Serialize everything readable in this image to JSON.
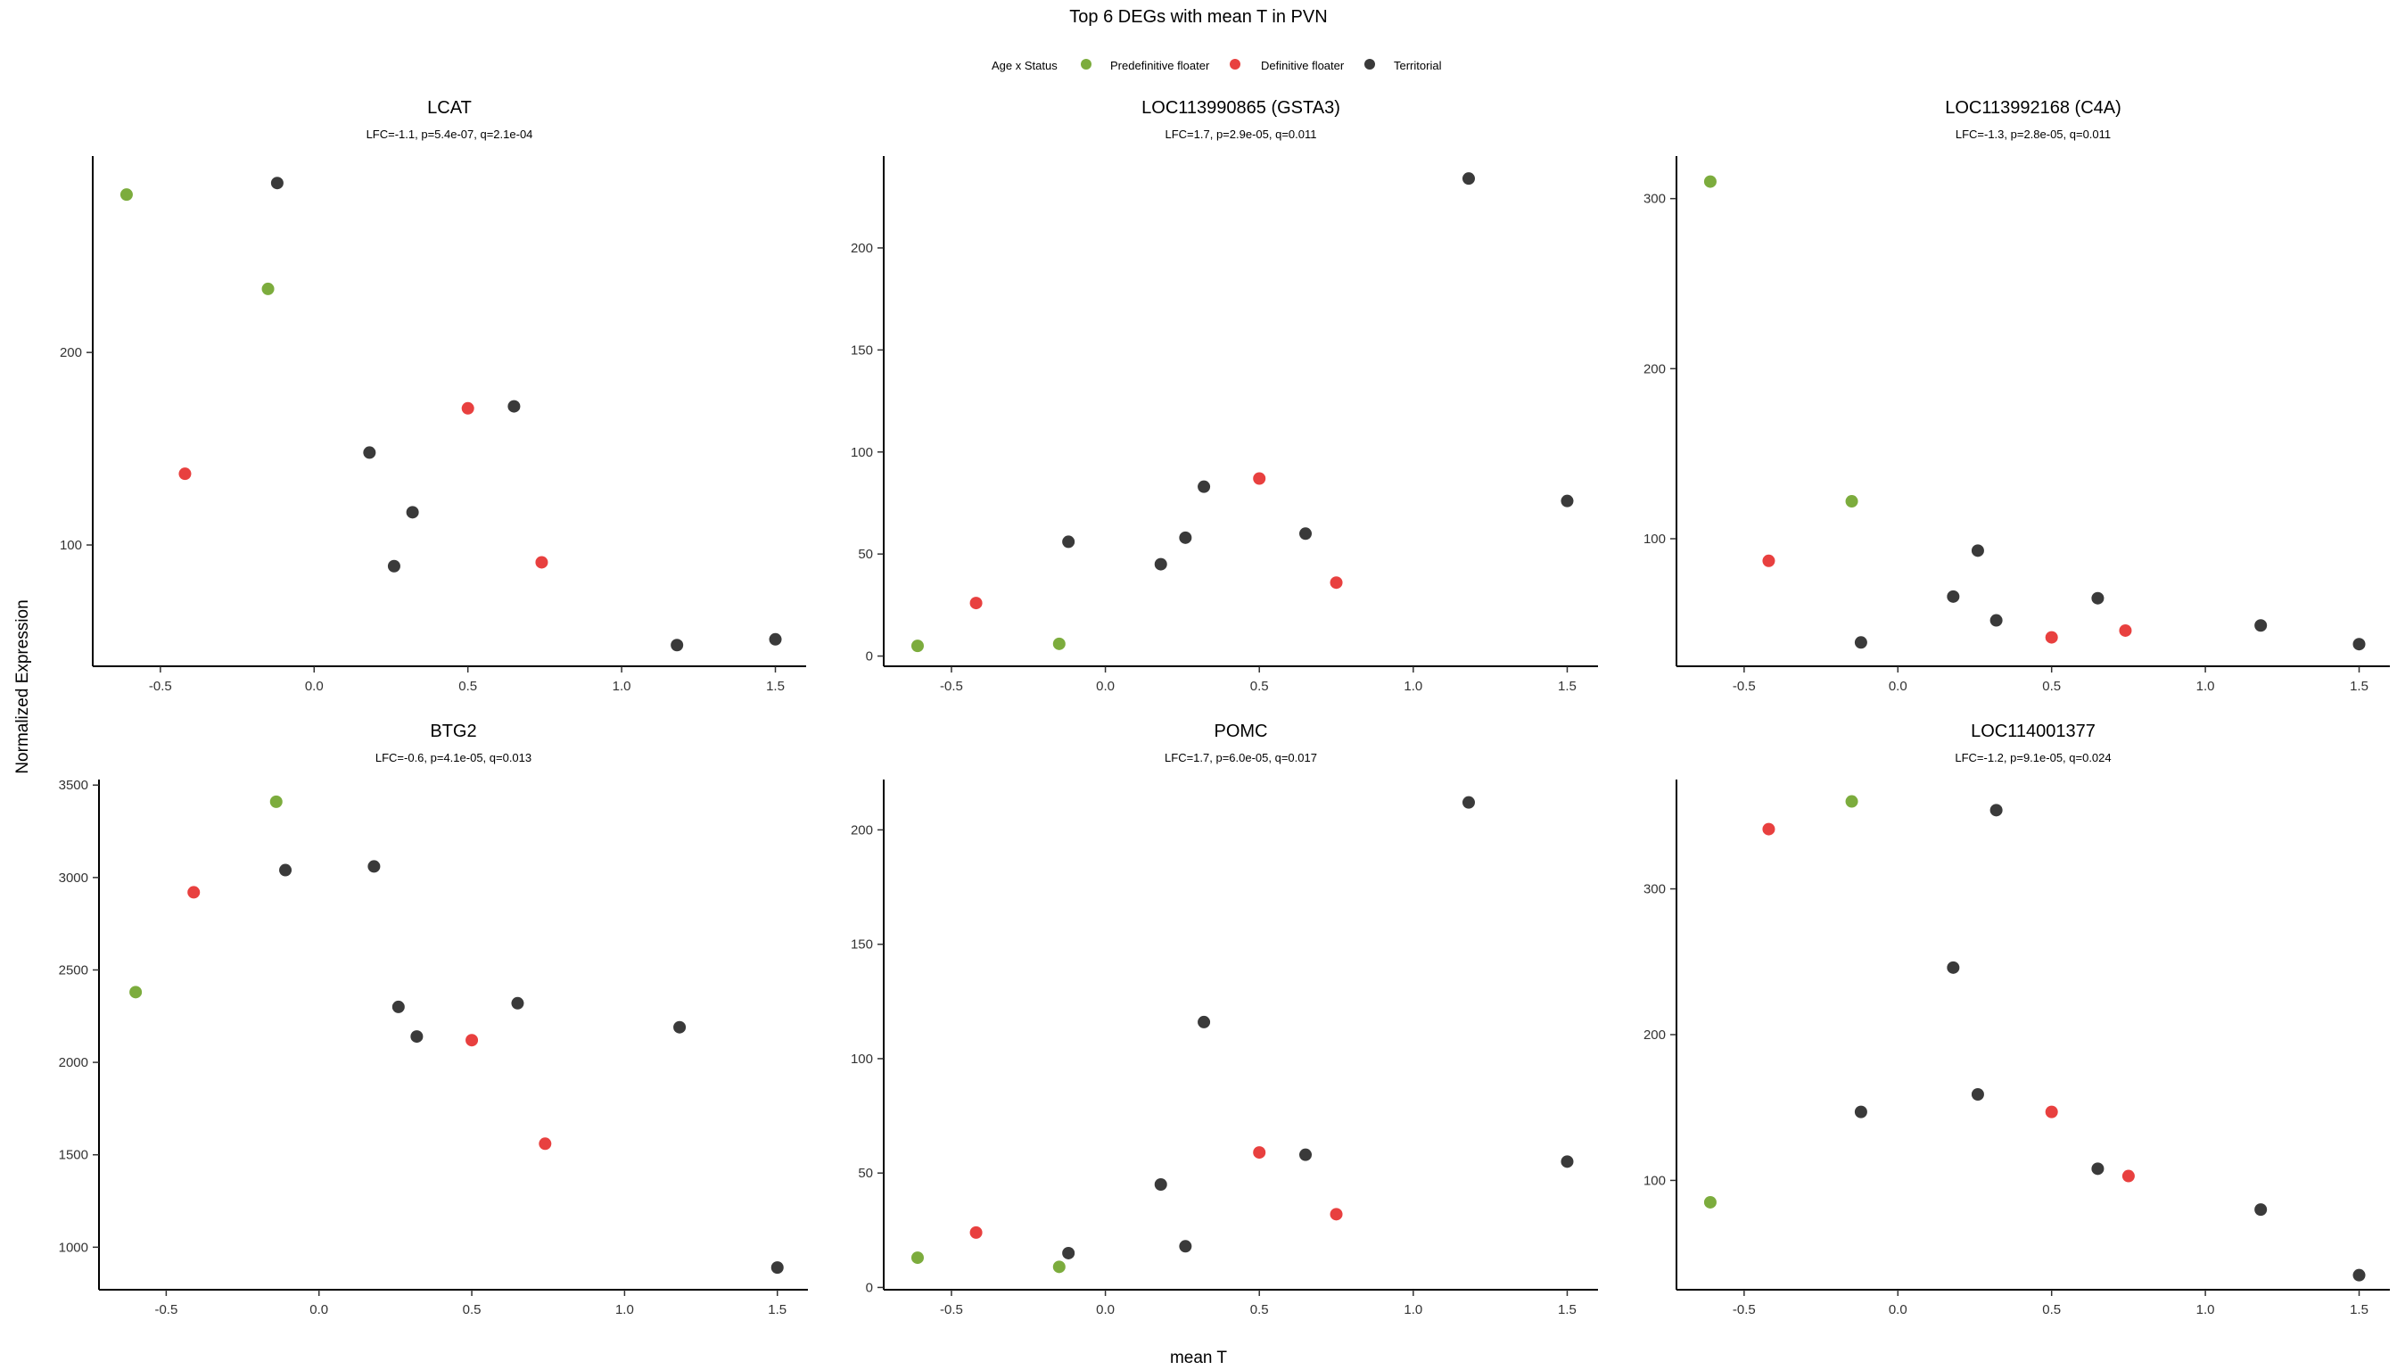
{
  "figure": {
    "title": "Top 6 DEGs with mean T in PVN",
    "xlabel": "mean T",
    "ylabel": "Normalized Expression"
  },
  "legend": {
    "title": "Age x Status",
    "items": [
      {
        "label": "Predefinitive floater",
        "color": "#7cac3d"
      },
      {
        "label": "Definitive floater",
        "color": "#e8403f"
      },
      {
        "label": "Territorial",
        "color": "#3a3a3a"
      }
    ]
  },
  "chart_data": [
    {
      "type": "scatter",
      "title": "LCAT",
      "subtitle": "LFC=-1.1, p=5.4e-07, q=2.1e-04",
      "xticks": [
        -0.5,
        0.0,
        0.5,
        1.0,
        1.5
      ],
      "xticklabels": [
        "-0.5",
        "0.0",
        "0.5",
        "1.0",
        "1.5"
      ],
      "yticks": [
        100,
        200
      ],
      "yticklabels": [
        "100",
        "200"
      ],
      "xlim": [
        -0.72,
        1.6
      ],
      "ylim": [
        37,
        302
      ],
      "series": [
        {
          "name": "Predefinitive floater",
          "color": "#7cac3d",
          "points": [
            [
              -0.61,
              282
            ],
            [
              -0.15,
              233
            ]
          ]
        },
        {
          "name": "Definitive floater",
          "color": "#e8403f",
          "points": [
            [
              -0.42,
              137
            ],
            [
              0.5,
              171
            ],
            [
              0.74,
              91
            ]
          ]
        },
        {
          "name": "Territorial",
          "color": "#3a3a3a",
          "points": [
            [
              -0.12,
              288
            ],
            [
              0.18,
              148
            ],
            [
              0.32,
              117
            ],
            [
              0.26,
              89
            ],
            [
              0.65,
              172
            ],
            [
              1.18,
              48
            ],
            [
              1.5,
              51
            ]
          ]
        }
      ]
    },
    {
      "type": "scatter",
      "title": "LOC113990865 (GSTA3)",
      "subtitle": "LFC=1.7, p=2.9e-05, q=0.011",
      "xticks": [
        -0.5,
        0.0,
        0.5,
        1.0,
        1.5
      ],
      "xticklabels": [
        "-0.5",
        "0.0",
        "0.5",
        "1.0",
        "1.5"
      ],
      "yticks": [
        0,
        50,
        100,
        150,
        200
      ],
      "yticklabels": [
        "0",
        "50",
        "100",
        "150",
        "200"
      ],
      "xlim": [
        -0.72,
        1.6
      ],
      "ylim": [
        -5,
        245
      ],
      "series": [
        {
          "name": "Predefinitive floater",
          "color": "#7cac3d",
          "points": [
            [
              -0.61,
              5
            ],
            [
              -0.15,
              6
            ]
          ]
        },
        {
          "name": "Definitive floater",
          "color": "#e8403f",
          "points": [
            [
              -0.42,
              26
            ],
            [
              0.5,
              87
            ],
            [
              0.75,
              36
            ]
          ]
        },
        {
          "name": "Territorial",
          "color": "#3a3a3a",
          "points": [
            [
              -0.12,
              56
            ],
            [
              0.18,
              45
            ],
            [
              0.26,
              58
            ],
            [
              0.32,
              83
            ],
            [
              0.65,
              60
            ],
            [
              1.18,
              234
            ],
            [
              1.5,
              76
            ]
          ]
        }
      ]
    },
    {
      "type": "scatter",
      "title": "LOC113992168 (C4A)",
      "subtitle": "LFC=-1.3, p=2.8e-05, q=0.011",
      "xticks": [
        -0.5,
        0.0,
        0.5,
        1.0,
        1.5
      ],
      "xticklabels": [
        "-0.5",
        "0.0",
        "0.5",
        "1.0",
        "1.5"
      ],
      "yticks": [
        100,
        200,
        300
      ],
      "yticklabels": [
        "100",
        "200",
        "300"
      ],
      "xlim": [
        -0.72,
        1.6
      ],
      "ylim": [
        25,
        325
      ],
      "series": [
        {
          "name": "Predefinitive floater",
          "color": "#7cac3d",
          "points": [
            [
              -0.61,
              310
            ],
            [
              -0.15,
              122
            ]
          ]
        },
        {
          "name": "Definitive floater",
          "color": "#e8403f",
          "points": [
            [
              -0.42,
              87
            ],
            [
              0.5,
              42
            ],
            [
              0.74,
              46
            ]
          ]
        },
        {
          "name": "Territorial",
          "color": "#3a3a3a",
          "points": [
            [
              -0.12,
              39
            ],
            [
              0.18,
              66
            ],
            [
              0.26,
              93
            ],
            [
              0.32,
              52
            ],
            [
              0.65,
              65
            ],
            [
              1.18,
              49
            ],
            [
              1.5,
              38
            ]
          ]
        }
      ]
    },
    {
      "type": "scatter",
      "title": "BTG2",
      "subtitle": "LFC=-0.6, p=4.1e-05, q=0.013",
      "xticks": [
        -0.5,
        0.0,
        0.5,
        1.0,
        1.5
      ],
      "xticklabels": [
        "-0.5",
        "0.0",
        "0.5",
        "1.0",
        "1.5"
      ],
      "yticks": [
        1000,
        1500,
        2000,
        2500,
        3000,
        3500
      ],
      "yticklabels": [
        "1000",
        "1500",
        "2000",
        "2500",
        "3000",
        "3500"
      ],
      "xlim": [
        -0.72,
        1.6
      ],
      "ylim": [
        770,
        3530
      ],
      "series": [
        {
          "name": "Predefinitive floater",
          "color": "#7cac3d",
          "points": [
            [
              -0.6,
              2380
            ],
            [
              -0.14,
              3410
            ]
          ]
        },
        {
          "name": "Definitive floater",
          "color": "#e8403f",
          "points": [
            [
              -0.41,
              2920
            ],
            [
              0.5,
              2120
            ],
            [
              0.74,
              1560
            ]
          ]
        },
        {
          "name": "Territorial",
          "color": "#3a3a3a",
          "points": [
            [
              -0.11,
              3040
            ],
            [
              0.18,
              3060
            ],
            [
              0.26,
              2300
            ],
            [
              0.32,
              2140
            ],
            [
              0.65,
              2320
            ],
            [
              1.18,
              2190
            ],
            [
              1.5,
              890
            ]
          ]
        }
      ]
    },
    {
      "type": "scatter",
      "title": "POMC",
      "subtitle": "LFC=1.7, p=6.0e-05, q=0.017",
      "xticks": [
        -0.5,
        0.0,
        0.5,
        1.0,
        1.5
      ],
      "xticklabels": [
        "-0.5",
        "0.0",
        "0.5",
        "1.0",
        "1.5"
      ],
      "yticks": [
        0,
        50,
        100,
        150,
        200
      ],
      "yticklabels": [
        "0",
        "50",
        "100",
        "150",
        "200"
      ],
      "xlim": [
        -0.72,
        1.6
      ],
      "ylim": [
        -1,
        222
      ],
      "series": [
        {
          "name": "Predefinitive floater",
          "color": "#7cac3d",
          "points": [
            [
              -0.61,
              13
            ],
            [
              -0.15,
              9
            ]
          ]
        },
        {
          "name": "Definitive floater",
          "color": "#e8403f",
          "points": [
            [
              -0.42,
              24
            ],
            [
              0.5,
              59
            ],
            [
              0.75,
              32
            ]
          ]
        },
        {
          "name": "Territorial",
          "color": "#3a3a3a",
          "points": [
            [
              -0.12,
              15
            ],
            [
              0.18,
              45
            ],
            [
              0.26,
              18
            ],
            [
              0.32,
              116
            ],
            [
              0.65,
              58
            ],
            [
              1.18,
              212
            ],
            [
              1.5,
              55
            ]
          ]
        }
      ]
    },
    {
      "type": "scatter",
      "title": "LOC114001377",
      "subtitle": "LFC=-1.2, p=9.1e-05, q=0.024",
      "xticks": [
        -0.5,
        0.0,
        0.5,
        1.0,
        1.5
      ],
      "xticklabels": [
        "-0.5",
        "0.0",
        "0.5",
        "1.0",
        "1.5"
      ],
      "yticks": [
        100,
        200,
        300
      ],
      "yticklabels": [
        "100",
        "200",
        "300"
      ],
      "xlim": [
        -0.72,
        1.6
      ],
      "ylim": [
        25,
        375
      ],
      "series": [
        {
          "name": "Predefinitive floater",
          "color": "#7cac3d",
          "points": [
            [
              -0.61,
              85
            ],
            [
              -0.15,
              360
            ]
          ]
        },
        {
          "name": "Definitive floater",
          "color": "#e8403f",
          "points": [
            [
              -0.42,
              341
            ],
            [
              0.5,
              147
            ],
            [
              0.75,
              103
            ]
          ]
        },
        {
          "name": "Territorial",
          "color": "#3a3a3a",
          "points": [
            [
              -0.12,
              147
            ],
            [
              0.18,
              246
            ],
            [
              0.26,
              159
            ],
            [
              0.32,
              354
            ],
            [
              0.65,
              108
            ],
            [
              1.18,
              80
            ],
            [
              1.5,
              35
            ]
          ]
        }
      ]
    }
  ]
}
